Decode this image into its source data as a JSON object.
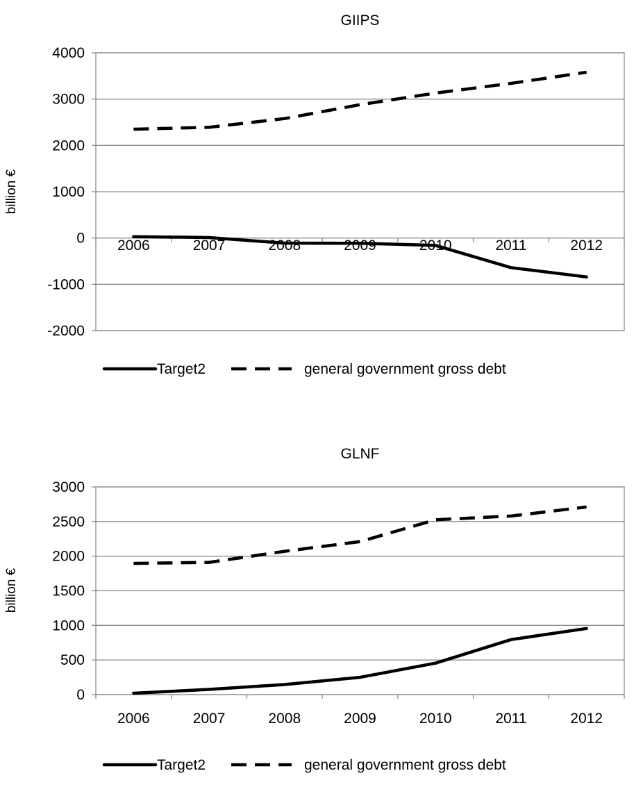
{
  "chart_data": [
    {
      "type": "line",
      "title": "GIIPS",
      "xlabel": "",
      "ylabel": "billion €",
      "ylim": [
        -2000,
        4000
      ],
      "yticks": [
        -2000,
        -1000,
        0,
        1000,
        2000,
        3000,
        4000
      ],
      "categories": [
        "2006",
        "2007",
        "2008",
        "2009",
        "2010",
        "2011",
        "2012"
      ],
      "grid": "horizontal",
      "legend": "bottom",
      "series": [
        {
          "name": "Target2",
          "style": "solid",
          "color": "#000000",
          "values": [
            30,
            10,
            -110,
            -115,
            -160,
            -640,
            -840
          ]
        },
        {
          "name": "general government gross debt",
          "style": "dashed",
          "color": "#000000",
          "values": [
            2350,
            2390,
            2580,
            2880,
            3130,
            3340,
            3580
          ]
        }
      ]
    },
    {
      "type": "line",
      "title": "GLNF",
      "xlabel": "",
      "ylabel": "billion €",
      "ylim": [
        0,
        3000
      ],
      "yticks": [
        0,
        500,
        1000,
        1500,
        2000,
        2500,
        3000
      ],
      "categories": [
        "2006",
        "2007",
        "2008",
        "2009",
        "2010",
        "2011",
        "2012"
      ],
      "grid": "horizontal",
      "legend": "bottom",
      "series": [
        {
          "name": "Target2",
          "style": "solid",
          "color": "#000000",
          "values": [
            20,
            75,
            145,
            250,
            455,
            795,
            955
          ]
        },
        {
          "name": "general government gross debt",
          "style": "dashed",
          "color": "#000000",
          "values": [
            1895,
            1910,
            2070,
            2210,
            2525,
            2580,
            2710
          ]
        }
      ]
    }
  ]
}
